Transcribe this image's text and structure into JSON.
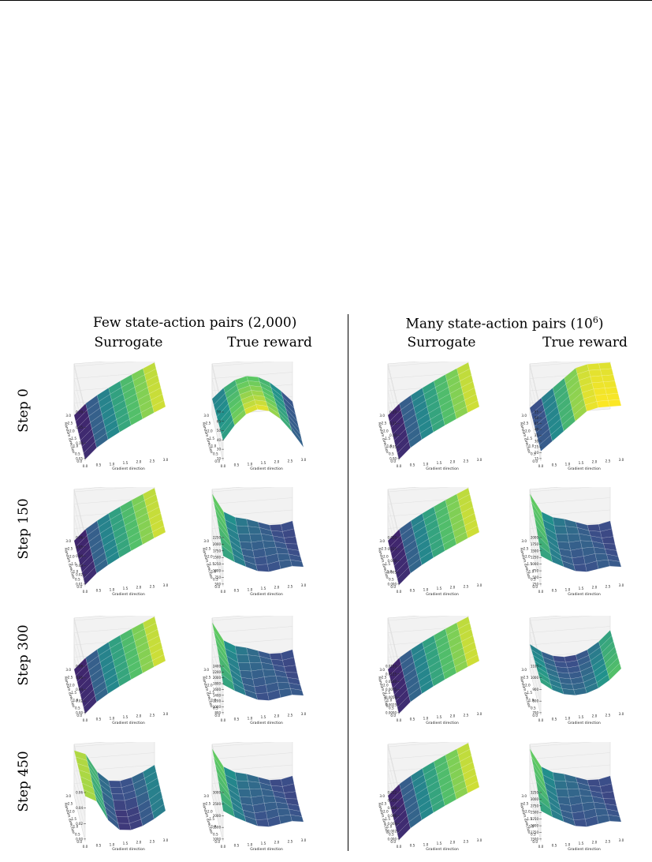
{
  "figure": {
    "groups": [
      {
        "title": "Few state-action pairs (2,000)"
      },
      {
        "title": "Many state-action pairs (10",
        "sup": "6",
        "suffix": ")"
      }
    ],
    "columns": [
      "Surrogate",
      "True reward",
      "Surrogate",
      "True reward"
    ],
    "rows": [
      "Step 0",
      "Step 150",
      "Step 300",
      "Step 450"
    ],
    "x_axis_label": "Gradient direction",
    "y_axis_label": "Random direction",
    "axis_ticks": [
      "0.0",
      "0.5",
      "1.0",
      "1.5",
      "2.0",
      "2.5",
      "3.0"
    ],
    "colors": {
      "low": "#440154",
      "mid": "#21918c",
      "high": "#fde725"
    }
  },
  "chart_data": [
    {
      "type": "surface",
      "row": "Step 0",
      "column": "Surrogate",
      "group": "Few state-action pairs (2,000)",
      "zticks": [
        "0.05",
        "0.10",
        "0.15",
        "0.20"
      ],
      "zlim": [
        0.0,
        0.22
      ],
      "shape": "rising_x"
    },
    {
      "type": "surface",
      "row": "Step 0",
      "column": "True reward",
      "group": "Few state-action pairs (2,000)",
      "zticks": [
        "20",
        "30",
        "40",
        "50",
        "60",
        "70"
      ],
      "zlim": [
        10,
        75
      ],
      "shape": "peak_mid"
    },
    {
      "type": "surface",
      "row": "Step 0",
      "column": "Surrogate",
      "group": "Many state-action pairs (10^6)",
      "zticks": [
        "0.00",
        "0.05",
        "0.10",
        "0.15",
        "0.20"
      ],
      "zlim": [
        0.0,
        0.21
      ],
      "shape": "rising_x"
    },
    {
      "type": "surface",
      "row": "Step 0",
      "column": "True reward",
      "group": "Many state-action pairs (10^6)",
      "zticks": [
        "15",
        "20",
        "25",
        "30",
        "35",
        "40",
        "45",
        "50",
        "55"
      ],
      "zlim": [
        12,
        55
      ],
      "shape": "plateau"
    },
    {
      "type": "surface",
      "row": "Step 150",
      "column": "Surrogate",
      "group": "Few state-action pairs (2,000)",
      "zticks": [
        "0.01",
        "0.02",
        "0.03",
        "0.04",
        "0.05",
        "0.06"
      ],
      "zlim": [
        0.0,
        0.06
      ],
      "shape": "rising_x"
    },
    {
      "type": "surface",
      "row": "Step 150",
      "column": "True reward",
      "group": "Few state-action pairs (2,000)",
      "zticks": [
        "500",
        "750",
        "1000",
        "1250",
        "1500",
        "1750",
        "2000",
        "2250"
      ],
      "zlim": [
        400,
        2300
      ],
      "shape": "drop"
    },
    {
      "type": "surface",
      "row": "Step 150",
      "column": "Surrogate",
      "group": "Many state-action pairs (10^6)",
      "zticks": [
        "0.000",
        "0.005",
        "0.010",
        "0.015",
        "0.020"
      ],
      "zlim": [
        0.0,
        0.021
      ],
      "shape": "rising_x"
    },
    {
      "type": "surface",
      "row": "Step 150",
      "column": "True reward",
      "group": "Many state-action pairs (10^6)",
      "zticks": [
        "250",
        "500",
        "750",
        "1000",
        "1250",
        "1500",
        "1750",
        "2000"
      ],
      "zlim": [
        200,
        2050
      ],
      "shape": "drop"
    },
    {
      "type": "surface",
      "row": "Step 300",
      "column": "Surrogate",
      "group": "Few state-action pairs (2,000)",
      "zticks": [
        "0.00",
        "0.02",
        "0.04",
        "0.06",
        "0.08"
      ],
      "zlim": [
        0.0,
        0.085
      ],
      "shape": "rising_x"
    },
    {
      "type": "surface",
      "row": "Step 300",
      "column": "True reward",
      "group": "Few state-action pairs (2,000)",
      "zticks": [
        "800",
        "1000",
        "1200",
        "1400",
        "1600",
        "1800",
        "2000",
        "2200",
        "2400"
      ],
      "zlim": [
        700,
        2450
      ],
      "shape": "drop"
    },
    {
      "type": "surface",
      "row": "Step 300",
      "column": "Surrogate",
      "group": "Many state-action pairs (10^6)",
      "zticks": [
        "0.0000",
        "0.0025",
        "0.0050",
        "0.0075",
        "0.0100",
        "0.0125",
        "0.0150"
      ],
      "zlim": [
        0.0,
        0.016
      ],
      "shape": "rising_x"
    },
    {
      "type": "surface",
      "row": "Step 300",
      "column": "True reward",
      "group": "Many state-action pairs (10^6)",
      "zticks": [
        "700",
        "800",
        "900",
        "1000",
        "1100"
      ],
      "zlim": [
        650,
        1150
      ],
      "shape": "bowl"
    },
    {
      "type": "surface",
      "row": "Step 450",
      "column": "Surrogate",
      "group": "Few state-action pairs (2,000)",
      "zticks": [
        "0.00",
        "0.02",
        "0.04",
        "0.06"
      ],
      "zlim": [
        -0.02,
        0.065
      ],
      "shape": "ridge"
    },
    {
      "type": "surface",
      "row": "Step 450",
      "column": "True reward",
      "group": "Few state-action pairs (2,000)",
      "zticks": [
        "1000",
        "1500",
        "2000",
        "2500",
        "3000"
      ],
      "zlim": [
        800,
        3050
      ],
      "shape": "drop"
    },
    {
      "type": "surface",
      "row": "Step 450",
      "column": "Surrogate",
      "group": "Many state-action pairs (10^6)",
      "zticks": [
        "0.000",
        "0.002",
        "0.004",
        "0.006",
        "0.008",
        "0.010",
        "0.012"
      ],
      "zlim": [
        0.0,
        0.0125
      ],
      "shape": "rising_x"
    },
    {
      "type": "surface",
      "row": "Step 450",
      "column": "True reward",
      "group": "Many state-action pairs (10^6)",
      "zticks": [
        "1500",
        "1750",
        "2000",
        "2250",
        "2500",
        "2750",
        "3000",
        "3250"
      ],
      "zlim": [
        1400,
        3300
      ],
      "shape": "drop"
    }
  ]
}
